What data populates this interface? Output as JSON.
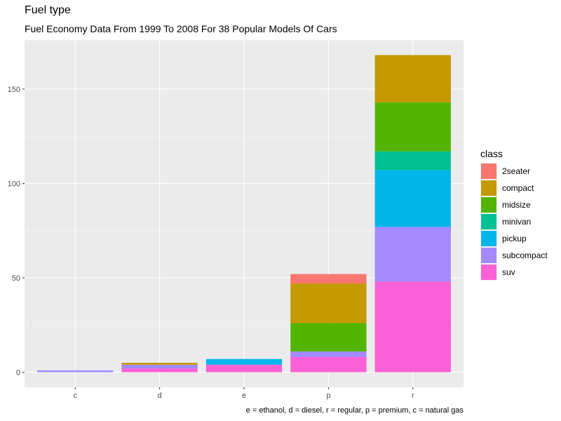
{
  "chart_data": {
    "type": "bar",
    "stacked": true,
    "title": "Fuel type",
    "subtitle": "Fuel Economy Data From 1999 To 2008 For 38 Popular Models Of Cars",
    "caption": "e = ethanol, d = diesel, r = regular, p = premium, c = natural gas",
    "xlabel": "",
    "ylabel": "",
    "categories": [
      "c",
      "d",
      "e",
      "p",
      "r"
    ],
    "y_ticks": [
      0,
      50,
      100,
      150
    ],
    "ylim": [
      -8,
      176
    ],
    "grid": true,
    "legend": {
      "title": "class",
      "position": "right"
    },
    "series": [
      {
        "name": "2seater",
        "color": "#F8766D",
        "values": [
          0,
          0,
          0,
          5,
          0
        ]
      },
      {
        "name": "compact",
        "color": "#C49A00",
        "values": [
          0,
          1,
          0,
          21,
          25
        ]
      },
      {
        "name": "midsize",
        "color": "#53B400",
        "values": [
          0,
          0,
          0,
          15,
          26
        ]
      },
      {
        "name": "minivan",
        "color": "#00C094",
        "values": [
          0,
          0,
          0,
          0,
          10
        ]
      },
      {
        "name": "pickup",
        "color": "#00B6EB",
        "values": [
          0,
          0,
          3,
          0,
          30
        ]
      },
      {
        "name": "subcompact",
        "color": "#A58AFF",
        "values": [
          1,
          2,
          0,
          3,
          29
        ]
      },
      {
        "name": "suv",
        "color": "#FB61D7",
        "values": [
          0,
          2,
          4,
          8,
          48
        ]
      }
    ]
  }
}
